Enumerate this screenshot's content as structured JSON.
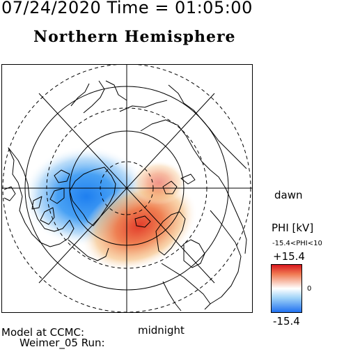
{
  "header": {
    "datetime": "07/24/2020 Time = 01:05:00",
    "hemisphere": "Northern Hemisphere"
  },
  "map": {
    "orientation": {
      "right": "dawn",
      "bottom": "midnight"
    },
    "potential_cells": [
      {
        "sign": "negative",
        "location": "dusk-side pre-midnight sector (left of pole)",
        "color": "#1e7ff0"
      },
      {
        "sign": "positive",
        "location": "dawn-side post-midnight sector (lower right of pole)",
        "color": "#e23c2a"
      }
    ]
  },
  "colorbar": {
    "title": "PHI [kV]",
    "range_text": "-15.4<PHI<10",
    "max_label": "+15.4",
    "mid_label": "0",
    "min_label": "-15.4",
    "colors": {
      "high": "#d8141c",
      "mid": "#ffffff",
      "low": "#1e6ff0"
    }
  },
  "footer": {
    "model_line1": "Model at CCMC:",
    "model_line2": "Weimer_05 Run:"
  }
}
